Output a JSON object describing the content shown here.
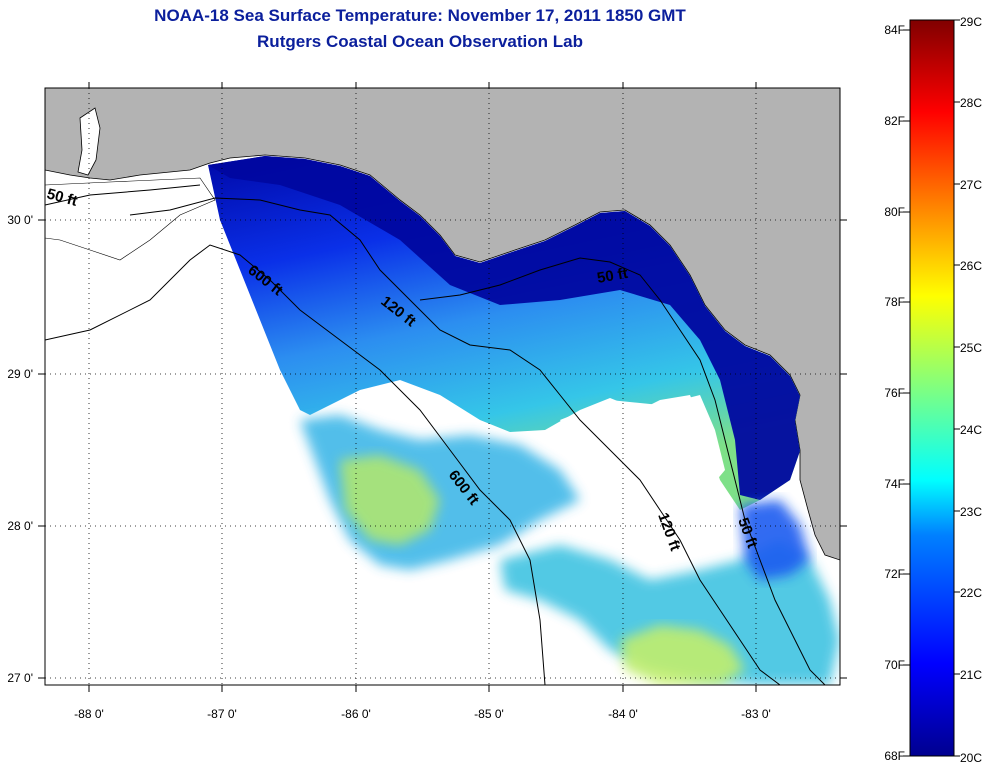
{
  "title_line1": "NOAA-18 Sea Surface Temperature:  November 17, 2011 1850 GMT",
  "title_line2": "Rutgers Coastal Ocean Observation Lab",
  "map": {
    "lon_ticks": [
      "-88 0'",
      "-87 0'",
      "-86 0'",
      "-85 0'",
      "-84 0'",
      "-83 0'"
    ],
    "lat_ticks": [
      "30 0'",
      "29 0'",
      "28 0'",
      "27 0'"
    ],
    "contour_labels": {
      "c50_west": "50 ft",
      "c600_north": "600 ft",
      "c120_north": "120 ft",
      "c50_east": "50 ft",
      "c600_south": "600 ft",
      "c120_south": "120 ft",
      "c50_south": "50 ft"
    },
    "colors": {
      "land": "#b3b3b3",
      "nodata": "#ffffff",
      "coast_line": "#000000"
    }
  },
  "colorbar": {
    "fahrenheit_labels": [
      "84F",
      "82F",
      "80F",
      "78F",
      "76F",
      "74F",
      "72F",
      "70F",
      "68F"
    ],
    "celsius_labels": [
      "29C",
      "28C",
      "27C",
      "26C",
      "25C",
      "24C",
      "23C",
      "22C",
      "21C",
      "20C"
    ],
    "colors": [
      "#00008f",
      "#0000ff",
      "#0080ff",
      "#00ffff",
      "#80ff80",
      "#ffff00",
      "#ff8000",
      "#ff0000",
      "#800000"
    ]
  }
}
